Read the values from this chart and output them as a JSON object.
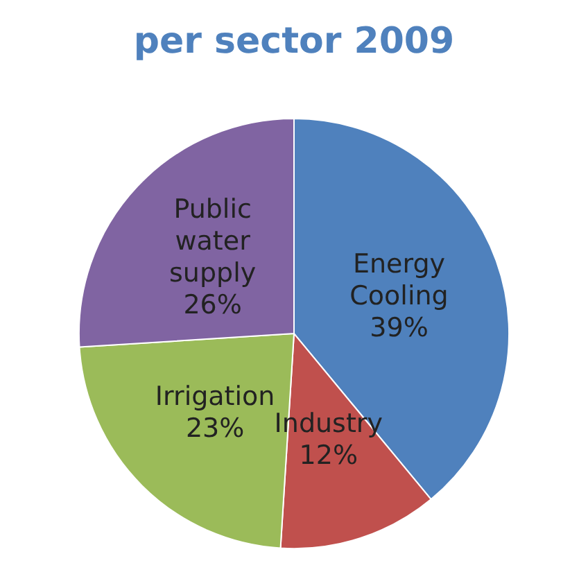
{
  "chart_data": {
    "type": "pie",
    "title": "per sector 2009",
    "categories": [
      "Energy Cooling",
      "Industry",
      "Irrigation",
      "Public water supply"
    ],
    "values": [
      39,
      12,
      23,
      26
    ],
    "colors": [
      "#4f81bd",
      "#c0504d",
      "#9bbb59",
      "#8064a2"
    ],
    "value_labels": [
      "39%",
      "12%",
      "23%",
      "26%"
    ],
    "legend": false
  }
}
